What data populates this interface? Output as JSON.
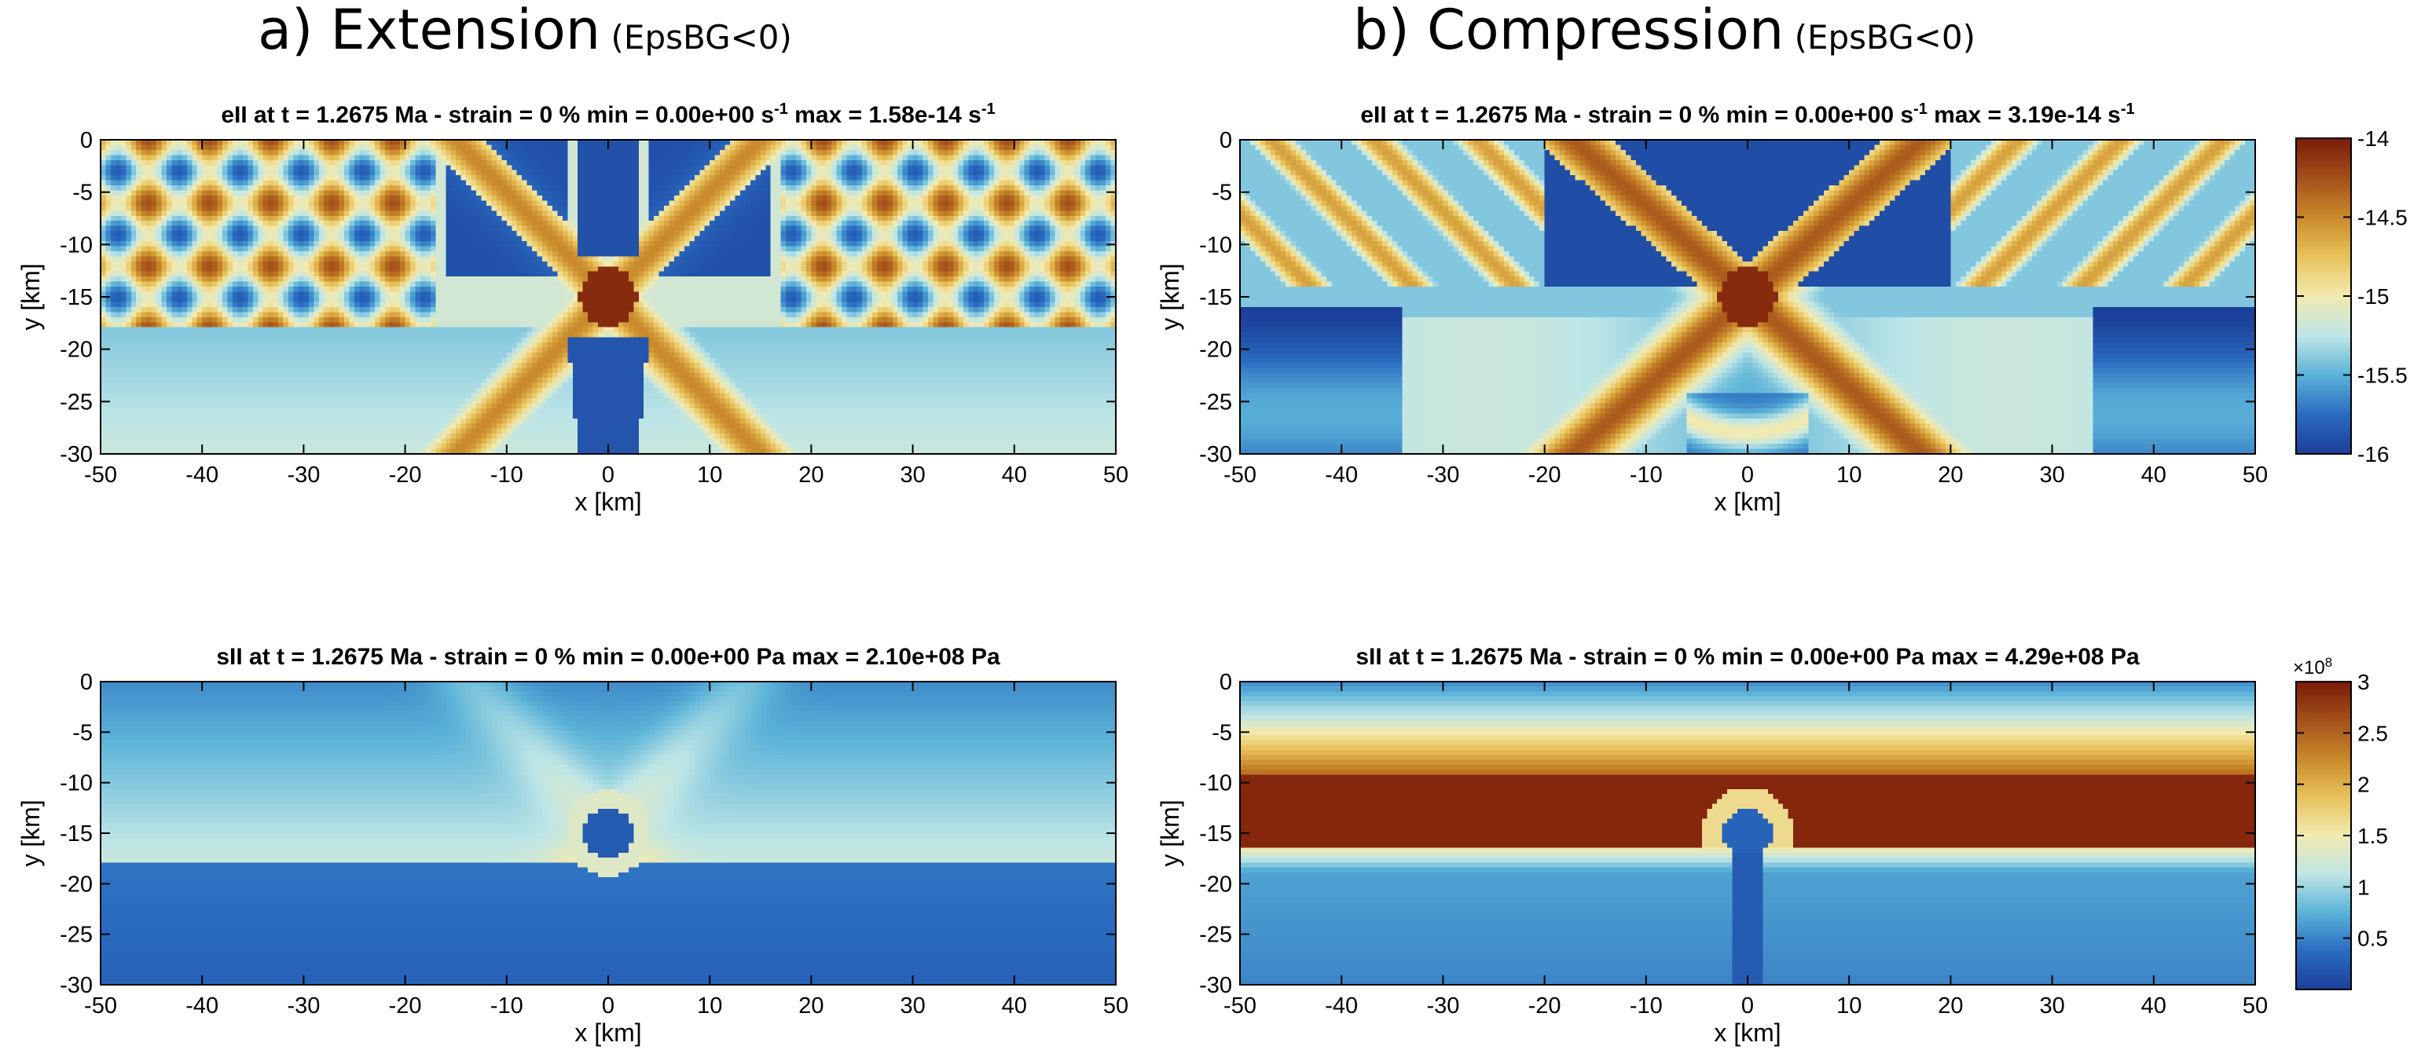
{
  "figure": {
    "col_titles": [
      {
        "main": "a) Extension",
        "sub": "(EpsBG<0)"
      },
      {
        "main": "b) Compression",
        "sub": "(EpsBG<0)"
      }
    ]
  },
  "chart_data": [
    {
      "type": "heatmap",
      "panel": "a-top",
      "quantity": "eII",
      "title": "eII at t = 1.2675 Ma  - strain = 0 % min = 0.00e+00 s<sup>-1</sup> max = 1.58e-14 s<sup>-1</sup>",
      "xlabel": "x [km]",
      "ylabel": "y [km]",
      "xlim": [
        -50,
        50
      ],
      "ylim": [
        -30,
        0
      ],
      "xticks": [
        -50,
        -40,
        -30,
        -20,
        -10,
        0,
        10,
        20,
        30,
        40,
        50
      ],
      "yticks": [
        0,
        -5,
        -10,
        -15,
        -20,
        -25,
        -30
      ],
      "mode": "ext",
      "field": "strain_rate",
      "colorbar": null
    },
    {
      "type": "heatmap",
      "panel": "b-top",
      "quantity": "eII",
      "title": "eII at t = 1.2675 Ma  - strain = 0 % min = 0.00e+00 s<sup>-1</sup> max = 3.19e-14 s<sup>-1</sup>",
      "xlabel": "x [km]",
      "ylabel": "y [km]",
      "xlim": [
        -50,
        50
      ],
      "ylim": [
        -30,
        0
      ],
      "xticks": [
        -50,
        -40,
        -30,
        -20,
        -10,
        0,
        10,
        20,
        30,
        40,
        50
      ],
      "yticks": [
        0,
        -5,
        -10,
        -15,
        -20,
        -25,
        -30
      ],
      "mode": "comp",
      "field": "strain_rate",
      "colorbar": {
        "range": [
          -16,
          -14
        ],
        "ticks": [
          "-14",
          "-14.5",
          "-15",
          "-15.5",
          "-16"
        ],
        "tick_values": [
          -14,
          -14.5,
          -15,
          -15.5,
          -16
        ],
        "exponent": ""
      }
    },
    {
      "type": "heatmap",
      "panel": "a-bottom",
      "quantity": "sII",
      "title": "sII at t = 1.2675 Ma  - strain = 0 % min = 0.00e+00 Pa max = 2.10e+08 Pa",
      "xlabel": "x [km]",
      "ylabel": "y [km]",
      "xlim": [
        -50,
        50
      ],
      "ylim": [
        -30,
        0
      ],
      "xticks": [
        -50,
        -40,
        -30,
        -20,
        -10,
        0,
        10,
        20,
        30,
        40,
        50
      ],
      "yticks": [
        0,
        -5,
        -10,
        -15,
        -20,
        -25,
        -30
      ],
      "mode": "ext",
      "field": "stress",
      "colorbar": null
    },
    {
      "type": "heatmap",
      "panel": "b-bottom",
      "quantity": "sII",
      "title": "sII at t = 1.2675 Ma  - strain = 0 % min = 0.00e+00 Pa max = 4.29e+08 Pa",
      "xlabel": "x [km]",
      "ylabel": "y [km]",
      "xlim": [
        -50,
        50
      ],
      "ylim": [
        -30,
        0
      ],
      "xticks": [
        -50,
        -40,
        -30,
        -20,
        -10,
        0,
        10,
        20,
        30,
        40,
        50
      ],
      "yticks": [
        0,
        -5,
        -10,
        -15,
        -20,
        -25,
        -30
      ],
      "mode": "comp",
      "field": "stress",
      "colorbar": {
        "range": [
          0,
          3
        ],
        "ticks": [
          "3",
          "2.5",
          "2",
          "1.5",
          "1",
          "0.5"
        ],
        "tick_values": [
          3,
          2.5,
          2,
          1.5,
          1,
          0.5
        ],
        "exponent": "×10<tspan baseline-shift='super' font-size='70%'>8</tspan>"
      }
    }
  ],
  "colormap": [
    "#1c3f99",
    "#2a6cc0",
    "#5bb3d8",
    "#bfe6e6",
    "#f2eab0",
    "#e8c25a",
    "#c9892a",
    "#a3501a",
    "#7a1a08"
  ]
}
